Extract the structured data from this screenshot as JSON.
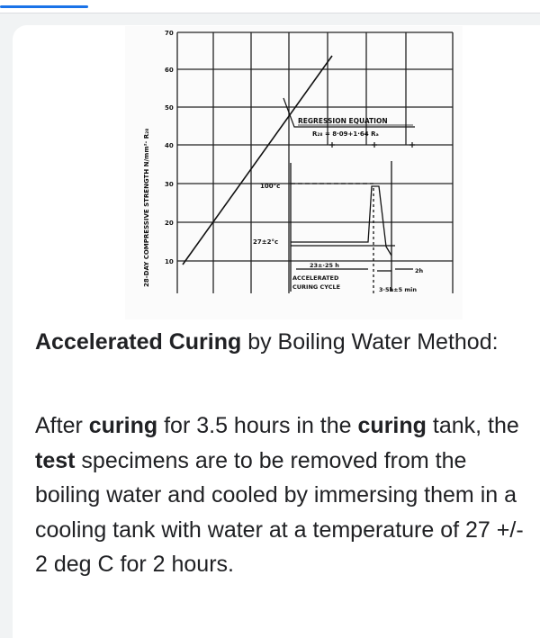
{
  "figure": {
    "y_axis_label": "28-DAY COMPRESSIVE STRENGTH N/mm²· R₂₈",
    "y_ticks": [
      "70",
      "60",
      "50",
      "40",
      "30",
      "20",
      "10"
    ],
    "regression_title": "REGRESSION EQUATION",
    "regression_formula": "R₂₈ = 8·09+1·64 Rₐ",
    "temp_high": "100°c",
    "temp_low": "27±2°c",
    "duration_main": "23±·25 h",
    "cycle_label_1": "ACCELERATED",
    "cycle_label_2": "CURING CYCLE",
    "duration_short": "3·5h±5 min",
    "duration_end": "2h"
  },
  "heading": {
    "bold": "Accelerated Curing",
    "rest": " by Boiling Water Method:"
  },
  "paragraph": {
    "t1": "After ",
    "b1": "curing",
    "t2": " for 3.5 hours in the ",
    "b2": "curing",
    "t3": " tank, the ",
    "b3": "test",
    "t4": " specimens are to be removed from the boiling water and cooled by immersing them in a cooling tank with water at a temperature of 27 +/- 2 deg C for 2 hours."
  }
}
